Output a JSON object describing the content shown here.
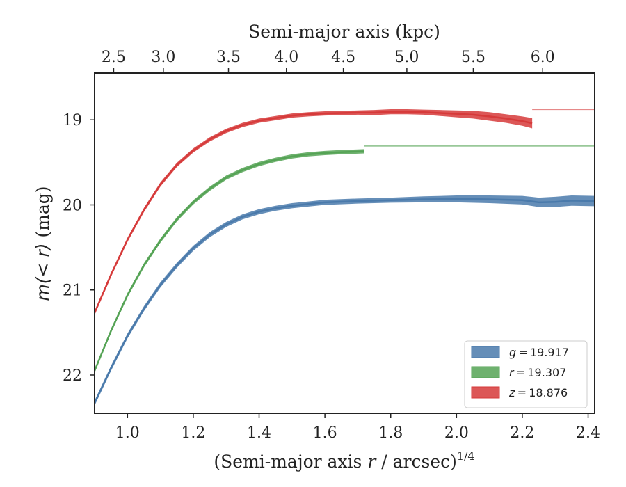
{
  "chart_data": {
    "type": "line",
    "xlabel": "(Semi-major axis r / arcsec)^{1/4}",
    "xlabel_parts": {
      "prefix": "(Semi-major axis ",
      "var": "r",
      "suffix": " / arcsec)",
      "sup": "1/4"
    },
    "x2label": "Semi-major axis (kpc)",
    "ylabel": "m(< r) (mag)",
    "ylabel_parts": {
      "var": "m(< r)",
      "suffix": " (mag)"
    },
    "xlim": [
      0.9,
      2.42
    ],
    "ylim": [
      22.45,
      18.45
    ],
    "y_inverted": true,
    "xticks": [
      1.0,
      1.2,
      1.4,
      1.6,
      1.8,
      2.0,
      2.2,
      2.4
    ],
    "xtick_labels": [
      "1.0",
      "1.2",
      "1.4",
      "1.6",
      "1.8",
      "2.0",
      "2.2",
      "2.4"
    ],
    "yticks": [
      19,
      20,
      21,
      22
    ],
    "ytick_labels": [
      "19",
      "20",
      "21",
      "22"
    ],
    "top_ticks": [
      {
        "x": 0.958,
        "label": "2.5"
      },
      {
        "x": 1.109,
        "label": "3.0"
      },
      {
        "x": 1.307,
        "label": "3.5"
      },
      {
        "x": 1.483,
        "label": "4.0"
      },
      {
        "x": 1.656,
        "label": "4.5"
      },
      {
        "x": 1.849,
        "label": "5.0"
      },
      {
        "x": 2.051,
        "label": "5.5"
      },
      {
        "x": 2.262,
        "label": "6.0"
      }
    ],
    "grid": false,
    "legend_position": "bottom-right",
    "series": [
      {
        "name": "g = 19.917",
        "legend_var": "g",
        "legend_value": "19.917",
        "color": "#4a7aab",
        "fit_line": false,
        "x": [
          0.9,
          0.95,
          1.0,
          1.05,
          1.1,
          1.15,
          1.2,
          1.25,
          1.3,
          1.35,
          1.4,
          1.45,
          1.5,
          1.55,
          1.6,
          1.7,
          1.8,
          1.9,
          2.0,
          2.1,
          2.2,
          2.25,
          2.3,
          2.35,
          2.42
        ],
        "y": [
          22.33,
          21.92,
          21.54,
          21.22,
          20.94,
          20.71,
          20.51,
          20.35,
          20.23,
          20.14,
          20.08,
          20.04,
          20.01,
          19.99,
          19.97,
          19.955,
          19.945,
          19.935,
          19.93,
          19.935,
          19.945,
          19.97,
          19.965,
          19.95,
          19.955
        ],
        "band": [
          0.03,
          0.03,
          0.03,
          0.03,
          0.03,
          0.03,
          0.03,
          0.03,
          0.03,
          0.03,
          0.03,
          0.03,
          0.03,
          0.03,
          0.03,
          0.03,
          0.03,
          0.035,
          0.04,
          0.045,
          0.05,
          0.055,
          0.06,
          0.06,
          0.06
        ]
      },
      {
        "name": "r = 19.307",
        "legend_var": "r",
        "legend_value": "19.307",
        "color": "#55a355",
        "fit_line": true,
        "fit_value": 19.307,
        "x": [
          0.9,
          0.95,
          1.0,
          1.05,
          1.1,
          1.15,
          1.2,
          1.25,
          1.3,
          1.35,
          1.4,
          1.45,
          1.5,
          1.55,
          1.6,
          1.65,
          1.72
        ],
        "y": [
          21.95,
          21.48,
          21.06,
          20.71,
          20.42,
          20.17,
          19.97,
          19.81,
          19.68,
          19.59,
          19.52,
          19.47,
          19.43,
          19.405,
          19.39,
          19.38,
          19.37
        ],
        "band": [
          0.025,
          0.025,
          0.025,
          0.025,
          0.025,
          0.025,
          0.025,
          0.025,
          0.025,
          0.025,
          0.025,
          0.025,
          0.025,
          0.025,
          0.025,
          0.025,
          0.025
        ]
      },
      {
        "name": "z = 18.876",
        "legend_var": "z",
        "legend_value": "18.876",
        "color": "#d63a3a",
        "fit_line": true,
        "fit_value": 18.876,
        "x": [
          0.9,
          0.95,
          1.0,
          1.05,
          1.1,
          1.15,
          1.2,
          1.25,
          1.3,
          1.35,
          1.4,
          1.45,
          1.5,
          1.55,
          1.6,
          1.7,
          1.75,
          1.8,
          1.85,
          1.9,
          1.95,
          2.0,
          2.05,
          2.1,
          2.15,
          2.2,
          2.23
        ],
        "y": [
          21.27,
          20.82,
          20.41,
          20.06,
          19.76,
          19.53,
          19.36,
          19.23,
          19.13,
          19.06,
          19.01,
          18.98,
          18.95,
          18.935,
          18.925,
          18.915,
          18.915,
          18.905,
          18.905,
          18.91,
          18.92,
          18.93,
          18.94,
          18.96,
          18.985,
          19.015,
          19.04
        ],
        "band": [
          0.025,
          0.025,
          0.025,
          0.025,
          0.025,
          0.025,
          0.025,
          0.025,
          0.025,
          0.025,
          0.025,
          0.025,
          0.025,
          0.025,
          0.025,
          0.025,
          0.03,
          0.03,
          0.03,
          0.03,
          0.035,
          0.04,
          0.045,
          0.05,
          0.05,
          0.055,
          0.06
        ]
      }
    ]
  }
}
